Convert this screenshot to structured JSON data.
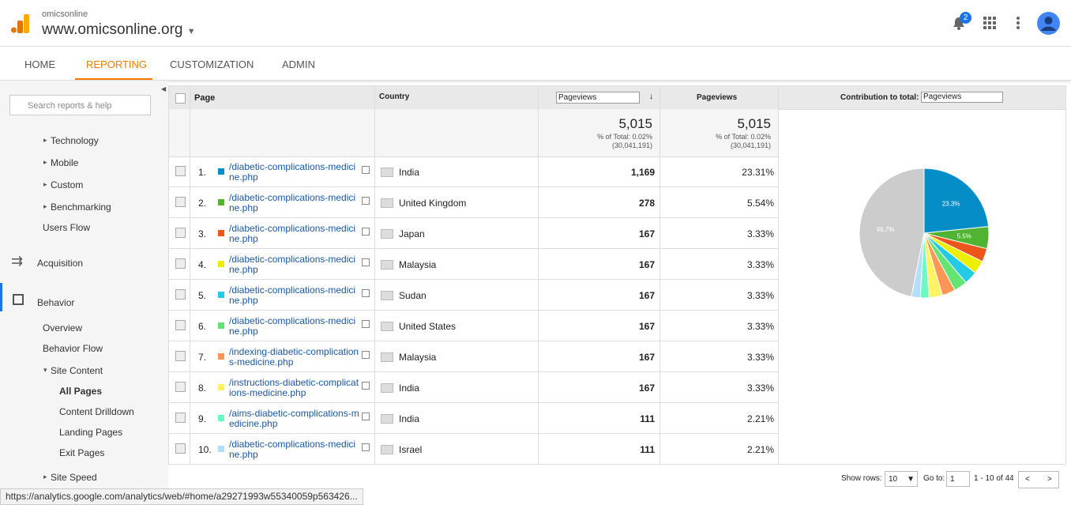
{
  "header": {
    "account": "omicsonline",
    "property": "www.omicsonline.org",
    "notifications": "2"
  },
  "nav": [
    "HOME",
    "REPORTING",
    "CUSTOMIZATION",
    "ADMIN"
  ],
  "sidebar": {
    "search": "Search reports & help",
    "items": [
      "Technology",
      "Mobile",
      "Custom",
      "Benchmarking",
      "Users Flow",
      "Acquisition",
      "Behavior",
      "Overview",
      "Behavior Flow",
      "Site Content",
      "All Pages",
      "Content Drilldown",
      "Landing Pages",
      "Exit Pages",
      "Site Speed"
    ]
  },
  "table": {
    "columns": {
      "page": "Page",
      "country": "Country",
      "metric_select": "Pageviews",
      "metric": "Pageviews",
      "contribution": "Contribution to total:",
      "contribution_select": "Pageviews"
    },
    "totals": [
      {
        "value": "5,015",
        "share": "% of Total: 0.02%",
        "base": "(30,041,191)"
      },
      {
        "value": "5,015",
        "share": "% of Total: 0.02%",
        "base": "(30,041,191)"
      }
    ],
    "rows": [
      {
        "index": "1.",
        "page": "/diabetic-complications-medicine.php",
        "country": "India",
        "pageviews": "1,169",
        "percent": "23.31%",
        "color": "#058dc7"
      },
      {
        "index": "2.",
        "page": "/diabetic-complications-medicine.php",
        "country": "United Kingdom",
        "pageviews": "278",
        "percent": "5.54%",
        "color": "#50b432"
      },
      {
        "index": "3.",
        "page": "/diabetic-complications-medicine.php",
        "country": "Japan",
        "pageviews": "167",
        "percent": "3.33%",
        "color": "#ed561b"
      },
      {
        "index": "4.",
        "page": "/diabetic-complications-medicine.php",
        "country": "Malaysia",
        "pageviews": "167",
        "percent": "3.33%",
        "color": "#edef00"
      },
      {
        "index": "5.",
        "page": "/diabetic-complications-medicine.php",
        "country": "Sudan",
        "pageviews": "167",
        "percent": "3.33%",
        "color": "#24cbe5"
      },
      {
        "index": "6.",
        "page": "/diabetic-complications-medicine.php",
        "country": "United States",
        "pageviews": "167",
        "percent": "3.33%",
        "color": "#64e572"
      },
      {
        "index": "7.",
        "page": "/indexing-diabetic-complications-medicine.php",
        "country": "Malaysia",
        "pageviews": "167",
        "percent": "3.33%",
        "color": "#ff9655"
      },
      {
        "index": "8.",
        "page": "/instructions-diabetic-complications-medicine.php",
        "country": "India",
        "pageviews": "167",
        "percent": "3.33%",
        "color": "#fff263"
      },
      {
        "index": "9.",
        "page": "/aims-diabetic-complications-medicine.php",
        "country": "India",
        "pageviews": "111",
        "percent": "2.21%",
        "color": "#6af9c4"
      },
      {
        "index": "10.",
        "page": "/diabetic-complications-medicine.php",
        "country": "Israel",
        "pageviews": "111",
        "percent": "2.21%",
        "color": "#b2deff"
      }
    ]
  },
  "pie": {
    "slices": [
      {
        "value": 23.3,
        "label": "23.3%",
        "color": "#058dc7"
      },
      {
        "value": 5.5,
        "label": "5.5%",
        "color": "#50b432"
      },
      {
        "value": 3.3,
        "color": "#ed561b"
      },
      {
        "value": 3.3,
        "color": "#edef00"
      },
      {
        "value": 3.3,
        "color": "#24cbe5"
      },
      {
        "value": 3.3,
        "color": "#64e572"
      },
      {
        "value": 3.3,
        "color": "#ff9655"
      },
      {
        "value": 3.3,
        "color": "#fff263"
      },
      {
        "value": 2.2,
        "color": "#6af9c4"
      },
      {
        "value": 2.2,
        "color": "#b2deff"
      },
      {
        "value": 46.7,
        "label": "46.7%",
        "color": "#cccccc"
      }
    ]
  },
  "footer": {
    "show_rows": "Show rows:",
    "rows_value": "10",
    "goto": "Go to:",
    "goto_value": "1",
    "range": "1 - 10 of 44"
  },
  "status_url": "https://analytics.google.com/analytics/web/#home/a29271993w55340059p563426..."
}
